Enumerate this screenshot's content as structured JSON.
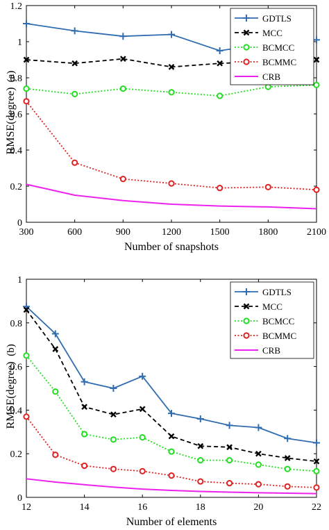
{
  "chart_data": [
    {
      "type": "line",
      "panel_label": "(a)",
      "xlabel": "Number of snapshots",
      "ylabel": "RMSE(degree)",
      "x": [
        300,
        600,
        900,
        1200,
        1500,
        1800,
        2100
      ],
      "xlim": [
        300,
        2100
      ],
      "ylim": [
        0,
        1.2
      ],
      "xticks": [
        "300",
        "600",
        "900",
        "1200",
        "1500",
        "1800",
        "2100"
      ],
      "yticks": [
        "0",
        "0.2",
        "0.4",
        "0.6",
        "0.8",
        "1",
        "1.2"
      ],
      "grid": false,
      "legend_position": "top-right",
      "series": [
        {
          "name": "GDTLS",
          "color": "#2f6db0",
          "dash": "solid",
          "marker": "plus",
          "values": [
            1.1,
            1.06,
            1.03,
            1.04,
            0.95,
            0.99,
            1.01
          ]
        },
        {
          "name": "MCC",
          "color": "#000000",
          "dash": "dashed",
          "marker": "x",
          "values": [
            0.9,
            0.88,
            0.905,
            0.86,
            0.88,
            0.89,
            0.9
          ]
        },
        {
          "name": "BCMCC",
          "color": "#22dd22",
          "dash": "dotted",
          "marker": "circle",
          "values": [
            0.74,
            0.71,
            0.74,
            0.72,
            0.7,
            0.75,
            0.76
          ]
        },
        {
          "name": "BCMMC",
          "color": "#dd2222",
          "dash": "dotted",
          "marker": "circle",
          "values": [
            0.67,
            0.33,
            0.24,
            0.215,
            0.19,
            0.195,
            0.18
          ]
        },
        {
          "name": "CRB",
          "color": "#ee22ee",
          "dash": "solid",
          "marker": "none",
          "values": [
            0.21,
            0.15,
            0.12,
            0.1,
            0.09,
            0.085,
            0.075
          ]
        }
      ]
    },
    {
      "type": "line",
      "panel_label": "(b)",
      "xlabel": "Number of elements",
      "ylabel": "RMSE(degree)",
      "x": [
        12,
        13,
        14,
        15,
        16,
        17,
        18,
        19,
        20,
        21,
        22
      ],
      "xlim": [
        12,
        22
      ],
      "ylim": [
        0,
        1
      ],
      "xticks": [
        "12",
        "14",
        "16",
        "18",
        "20",
        "22"
      ],
      "yticks": [
        "0",
        "0.2",
        "0.4",
        "0.6",
        "0.8",
        "1"
      ],
      "grid": false,
      "legend_position": "top-right",
      "series": [
        {
          "name": "GDTLS",
          "color": "#2f6db0",
          "dash": "solid",
          "marker": "plus",
          "values": [
            0.875,
            0.75,
            0.53,
            0.5,
            0.555,
            0.385,
            0.36,
            0.33,
            0.32,
            0.27,
            0.25
          ]
        },
        {
          "name": "MCC",
          "color": "#000000",
          "dash": "dashed",
          "marker": "x",
          "values": [
            0.86,
            0.68,
            0.415,
            0.38,
            0.405,
            0.28,
            0.235,
            0.23,
            0.2,
            0.18,
            0.165
          ]
        },
        {
          "name": "BCMCC",
          "color": "#22dd22",
          "dash": "dotted",
          "marker": "circle",
          "values": [
            0.65,
            0.485,
            0.29,
            0.265,
            0.275,
            0.21,
            0.17,
            0.17,
            0.15,
            0.13,
            0.12
          ]
        },
        {
          "name": "BCMMC",
          "color": "#dd2222",
          "dash": "dotted",
          "marker": "circle",
          "values": [
            0.37,
            0.195,
            0.145,
            0.13,
            0.12,
            0.1,
            0.073,
            0.065,
            0.06,
            0.05,
            0.045
          ]
        },
        {
          "name": "CRB",
          "color": "#ee22ee",
          "dash": "solid",
          "marker": "none",
          "values": [
            0.085,
            0.07,
            0.058,
            0.047,
            0.038,
            0.032,
            0.027,
            0.024,
            0.021,
            0.019,
            0.017
          ]
        }
      ]
    }
  ]
}
